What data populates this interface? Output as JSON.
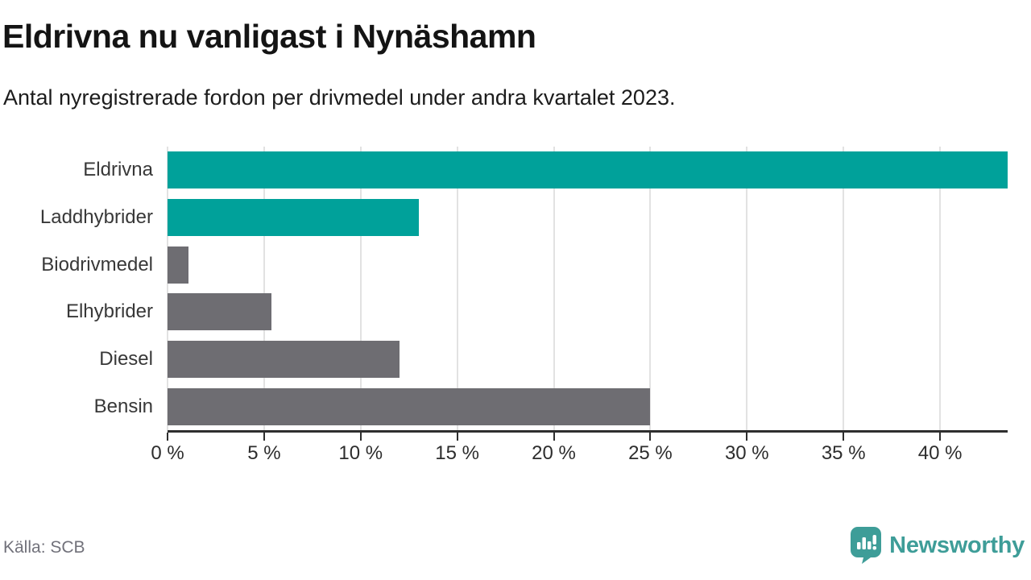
{
  "header": {
    "title": "Eldrivna nu vanligast i Nynäshamn",
    "subtitle": "Antal nyregistrerade fordon per drivmedel under andra kvartalet 2023."
  },
  "chart_data": {
    "type": "bar",
    "orientation": "horizontal",
    "title": "Eldrivna nu vanligast i Nynäshamn",
    "subtitle": "Antal nyregistrerade fordon per drivmedel under andra kvartalet 2023.",
    "categories": [
      "Eldrivna",
      "Laddhybrider",
      "Biodrivmedel",
      "Elhybrider",
      "Diesel",
      "Bensin"
    ],
    "values": [
      43.5,
      13,
      1.1,
      5.4,
      12,
      25
    ],
    "unit": "%",
    "xlim": [
      0,
      43.5
    ],
    "x_ticks": [
      0,
      5,
      10,
      15,
      20,
      25,
      30,
      35,
      40
    ],
    "x_tick_labels": [
      "0 %",
      "5 %",
      "10 %",
      "15 %",
      "20 %",
      "25 %",
      "30 %",
      "35 %",
      "40 %"
    ],
    "bar_colors": [
      "#00a19a",
      "#00a19a",
      "#6e6d72",
      "#6e6d72",
      "#6e6d72",
      "#6e6d72"
    ],
    "colors": {
      "highlight": "#00a19a",
      "default": "#6e6d72",
      "grid": "#e2e2e2",
      "axis": "#2e2e2e"
    },
    "grid": true,
    "legend": false
  },
  "footer": {
    "source": "Källa: SCB",
    "brand": "Newsworthy",
    "brand_color": "#3e9d98"
  }
}
